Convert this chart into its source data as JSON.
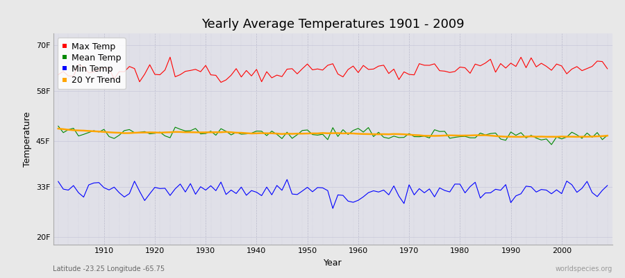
{
  "title": "Yearly Average Temperatures 1901 - 2009",
  "xlabel": "Year",
  "ylabel": "Temperature",
  "subtitle": "Latitude -23.25 Longitude -65.75",
  "watermark": "worldspecies.org",
  "years_start": 1901,
  "years_end": 2009,
  "yticks": [
    20,
    33,
    45,
    58,
    70
  ],
  "ytick_labels": [
    "20F",
    "33F",
    "45F",
    "58F",
    "70F"
  ],
  "ylim": [
    18,
    73
  ],
  "xlim": [
    1900,
    2010
  ],
  "max_temp_base": 63.0,
  "mean_temp_base": 46.8,
  "min_temp_base": 32.5,
  "max_temp_color": "#ff0000",
  "mean_temp_color": "#008800",
  "min_temp_color": "#0000ff",
  "trend_color": "#ffa500",
  "fig_bg_color": "#e8e8e8",
  "plot_bg_color": "#e0e0e8",
  "legend_labels": [
    "Max Temp",
    "Mean Temp",
    "Min Temp",
    "20 Yr Trend"
  ],
  "legend_colors": [
    "#ff0000",
    "#008800",
    "#0000ff",
    "#ffa500"
  ],
  "grid_color_v": "#bbbbcc",
  "grid_color_h": "#ccccdd",
  "title_fontsize": 13,
  "label_fontsize": 9,
  "tick_fontsize": 8,
  "xticks": [
    1910,
    1920,
    1930,
    1940,
    1950,
    1960,
    1970,
    1980,
    1990,
    2000
  ]
}
